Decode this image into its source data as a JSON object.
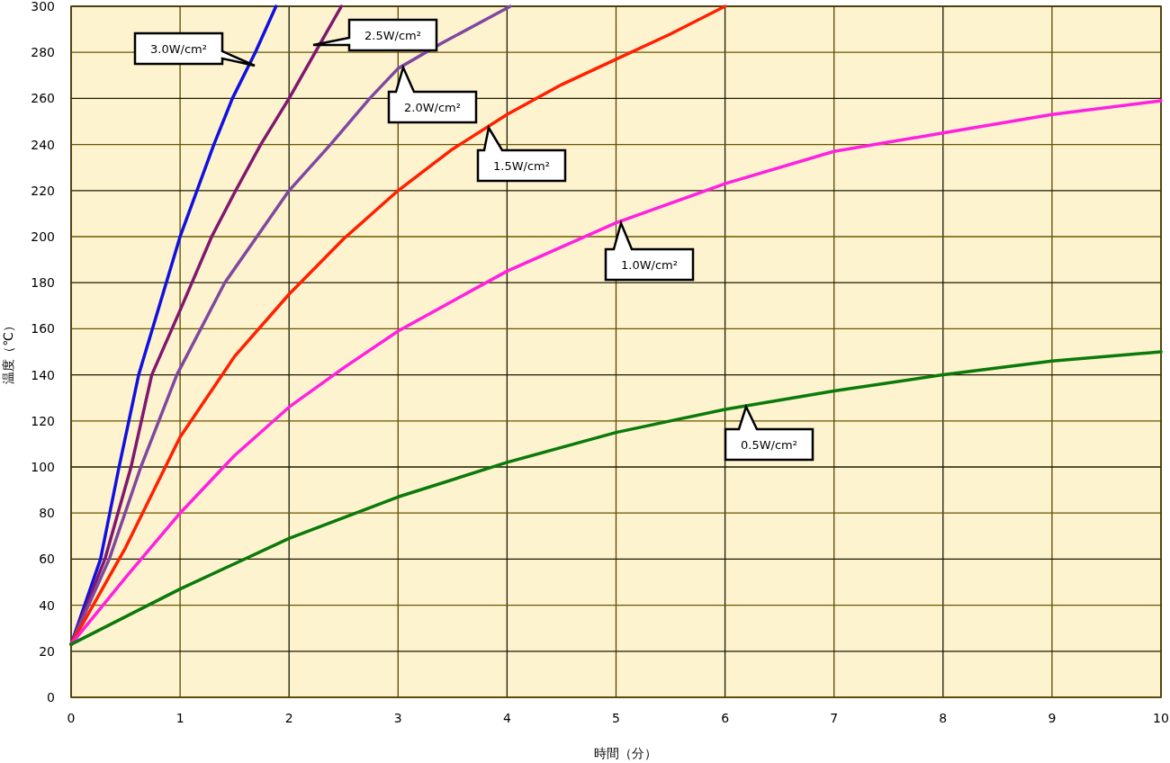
{
  "chart_data": {
    "type": "line",
    "xlabel": "時間（分）",
    "ylabel": "温度（℃）",
    "xlim": [
      0,
      10
    ],
    "xticks": [
      0,
      1,
      2,
      3,
      4,
      5,
      6,
      7,
      8,
      9,
      10
    ],
    "ylim": [
      0,
      300
    ],
    "yticks": [
      0,
      20,
      40,
      60,
      80,
      100,
      120,
      140,
      160,
      180,
      200,
      220,
      240,
      260,
      280,
      300
    ],
    "grid": true,
    "marker": "none",
    "line_style": "solid",
    "series": [
      {
        "color": "#1010e0",
        "x": [
          0,
          0.27,
          0.44,
          0.62,
          1.0,
          1.31,
          1.48,
          1.69,
          1.88
        ],
        "values": [
          23,
          60,
          100,
          140,
          200,
          240,
          260,
          280,
          300
        ]
      },
      {
        "color": "#7f1870",
        "x": [
          0,
          0.31,
          0.55,
          0.74,
          1.0,
          1.29,
          1.51,
          1.74,
          2.0,
          2.24,
          2.48
        ],
        "values": [
          23,
          60,
          100,
          140,
          168,
          200,
          220,
          240,
          260,
          280,
          300
        ]
      },
      {
        "color": "#7f48a0",
        "x": [
          0,
          0.35,
          0.64,
          0.97,
          1.41,
          2.0,
          2.38,
          2.74,
          3.0,
          3.4,
          4.03
        ],
        "values": [
          23,
          60,
          100,
          140,
          180,
          220,
          240,
          260,
          273,
          284,
          300
        ]
      },
      {
        "color": "#ff2000",
        "x": [
          0,
          0.5,
          1,
          1.5,
          2,
          2.5,
          3,
          3.5,
          4,
          4.5,
          5,
          5.5,
          6
        ],
        "values": [
          23,
          65,
          113,
          148,
          175,
          199,
          220,
          238,
          253,
          266,
          277,
          288,
          300
        ]
      },
      {
        "color": "#ff20e0",
        "x": [
          0,
          0.5,
          1,
          1.5,
          2,
          2.5,
          3,
          4,
          5,
          6,
          7,
          8,
          9,
          10
        ],
        "values": [
          23,
          52,
          80,
          105,
          126,
          143,
          159,
          185,
          206,
          223,
          237,
          245,
          253,
          259
        ]
      },
      {
        "color": "#0a7a0a",
        "x": [
          0,
          0.5,
          1,
          2,
          3,
          4,
          5,
          6,
          7,
          8,
          9,
          10
        ],
        "values": [
          23,
          35,
          47,
          69,
          87,
          102,
          115,
          125,
          133,
          140,
          146,
          150
        ]
      }
    ],
    "annotations": [
      "3.0W/cm²",
      "2.5W/cm²",
      "2.0W/cm²",
      "1.5W/cm²",
      "1.0W/cm²",
      "0.5W/cm²"
    ]
  }
}
